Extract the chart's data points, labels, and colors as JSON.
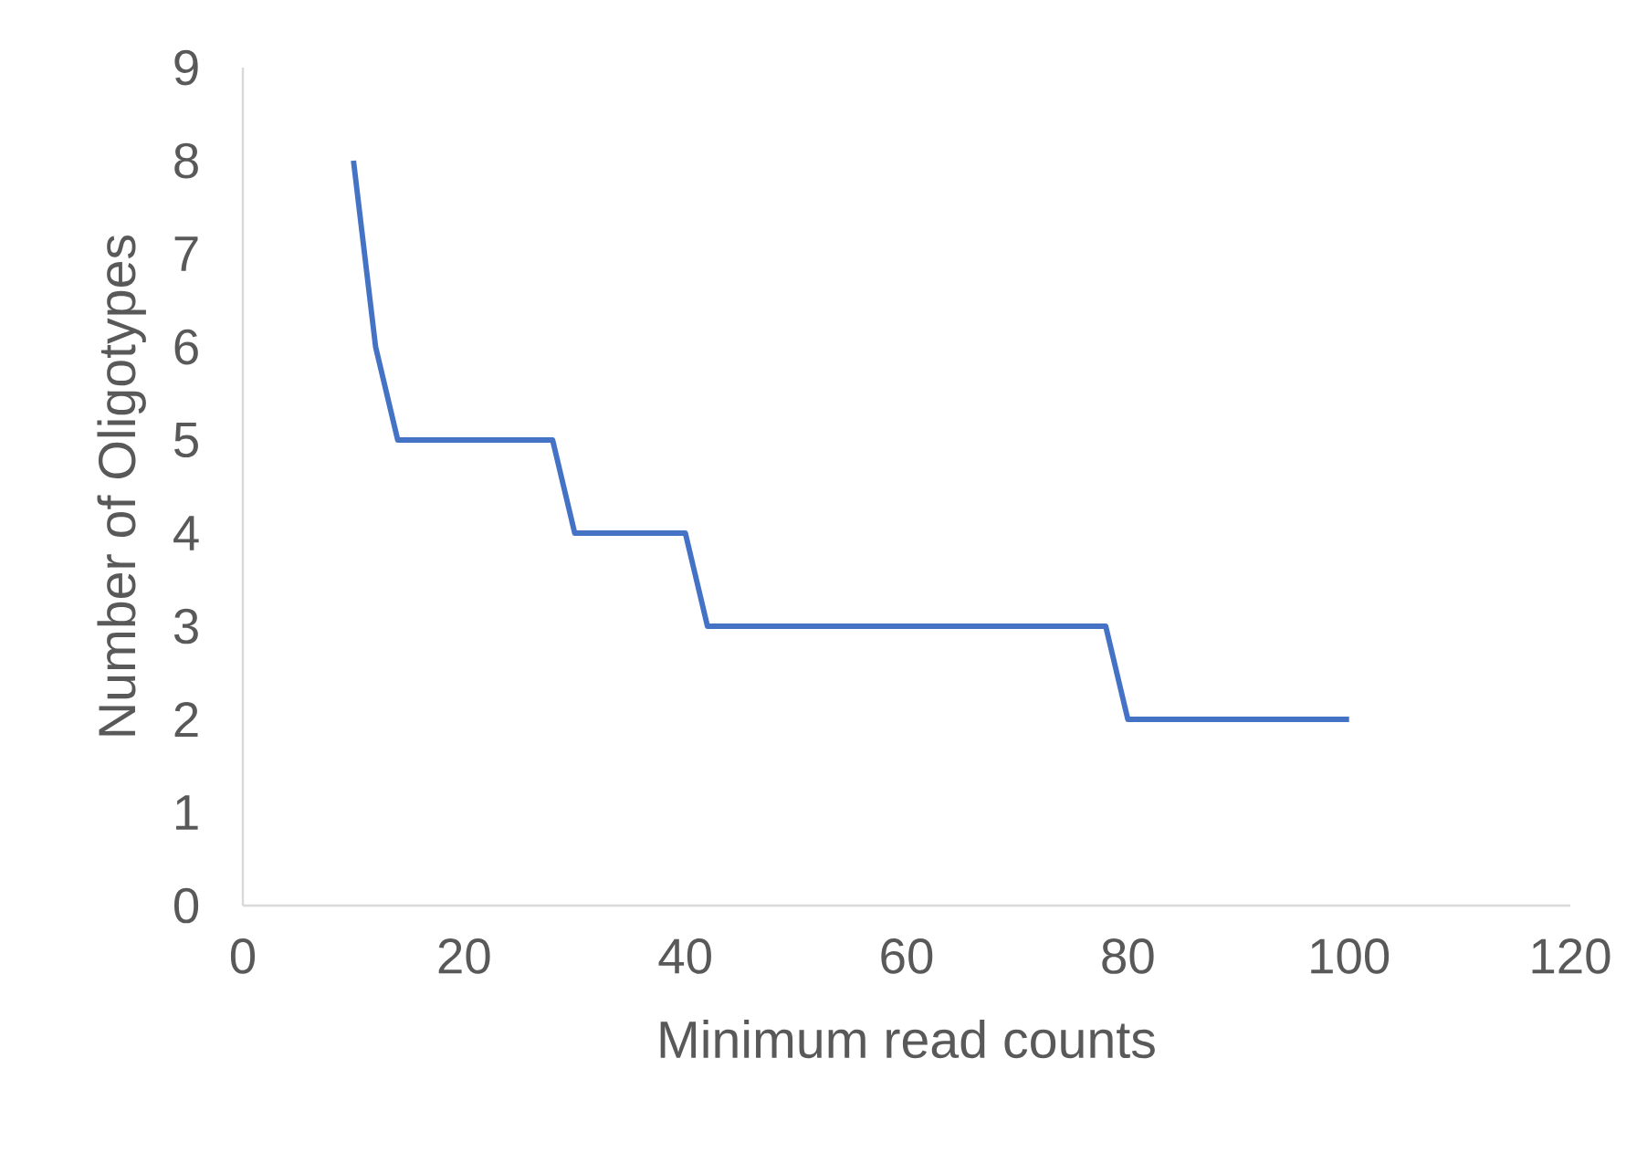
{
  "chart_data": {
    "type": "line",
    "xlabel": "Minimum read counts",
    "ylabel": "Number of Oligotypes",
    "x": [
      10,
      12,
      14,
      28,
      30,
      40,
      42,
      78,
      80,
      100
    ],
    "series": [
      {
        "color": "#4472c4",
        "values": [
          8,
          6,
          5,
          5,
          4,
          4,
          3,
          3,
          2,
          2
        ]
      }
    ],
    "xlim": [
      0,
      120
    ],
    "xticks": [
      0,
      20,
      40,
      60,
      80,
      100,
      120
    ],
    "ylim": [
      0,
      9
    ],
    "yticks": [
      0,
      1,
      2,
      3,
      4,
      5,
      6,
      7,
      8,
      9
    ],
    "grid": false,
    "marker": "none",
    "line_style": "solid"
  }
}
